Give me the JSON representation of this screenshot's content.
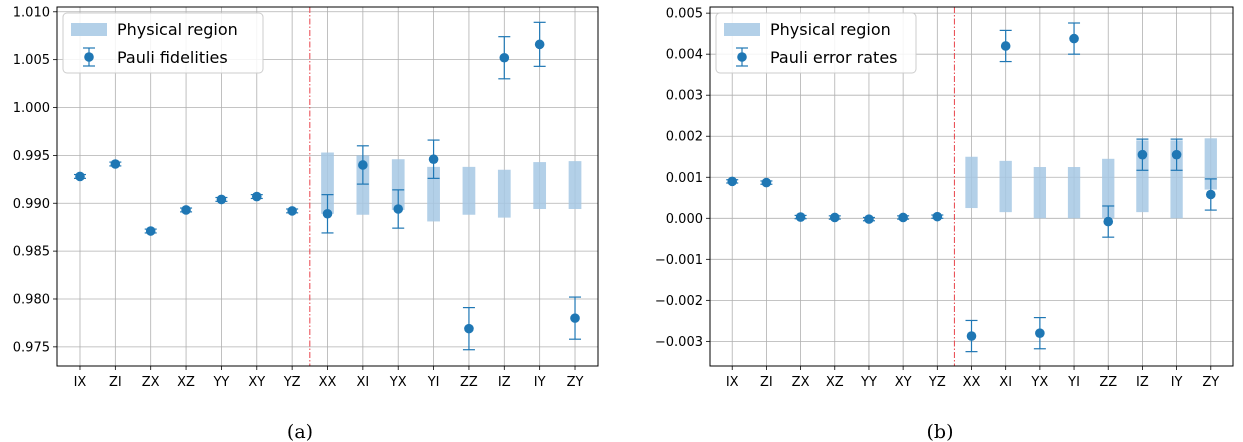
{
  "chart_data": [
    {
      "type": "scatter",
      "caption": "(a)",
      "categories": [
        "IX",
        "ZI",
        "ZX",
        "XZ",
        "YY",
        "XY",
        "YZ",
        "XX",
        "XI",
        "YX",
        "YI",
        "ZZ",
        "IZ",
        "IY",
        "ZY"
      ],
      "ylim": [
        0.973,
        1.0105
      ],
      "yticks": [
        "0.975",
        "0.980",
        "0.985",
        "0.990",
        "0.995",
        "1.000",
        "1.005",
        "1.010"
      ],
      "grid": true,
      "legend_position": "top-left",
      "divider_after": "YZ",
      "legend": {
        "physical_label": "Physical region",
        "points_label": "Pauli fidelities"
      },
      "colors": {
        "points": "#1f77b4",
        "region": "#a6c8e4",
        "divider": "#e8434a"
      },
      "series": [
        {
          "name": "Pauli fidelities",
          "values": [
            0.9928,
            0.9941,
            0.9871,
            0.9893,
            0.9904,
            0.9907,
            0.9892,
            0.9889,
            0.994,
            0.9894,
            0.9946,
            0.9769,
            1.0052,
            1.0066,
            0.978
          ],
          "errors": [
            0.0002,
            0.0002,
            0.0002,
            0.0002,
            0.0002,
            0.0002,
            0.0002,
            0.002,
            0.002,
            0.002,
            0.002,
            0.0022,
            0.0022,
            0.0023,
            0.0022
          ]
        }
      ],
      "physical_region": [
        null,
        null,
        null,
        null,
        null,
        null,
        null,
        [
          0.9889,
          0.9953
        ],
        [
          0.9888,
          0.995
        ],
        [
          0.9893,
          0.9946
        ],
        [
          0.9881,
          0.9938
        ],
        [
          0.9888,
          0.9938
        ],
        [
          0.9885,
          0.9935
        ],
        [
          0.9894,
          0.9943
        ],
        [
          0.9894,
          0.9944
        ]
      ]
    },
    {
      "type": "scatter",
      "caption": "(b)",
      "categories": [
        "IX",
        "ZI",
        "ZX",
        "XZ",
        "YY",
        "XY",
        "YZ",
        "XX",
        "XI",
        "YX",
        "YI",
        "ZZ",
        "IZ",
        "IY",
        "ZY"
      ],
      "ylim": [
        -0.0036,
        0.00515
      ],
      "yticks": [
        "−0.003",
        "−0.002",
        "−0.001",
        "0.000",
        "0.001",
        "0.002",
        "0.003",
        "0.004",
        "0.005"
      ],
      "grid": true,
      "legend_position": "top-left",
      "divider_after": "YZ",
      "legend": {
        "physical_label": "Physical region",
        "points_label": "Pauli error rates"
      },
      "colors": {
        "points": "#1f77b4",
        "region": "#a6c8e4",
        "divider": "#e8434a"
      },
      "series": [
        {
          "name": "Pauli error rates",
          "values": [
            0.0009,
            0.00087,
            3e-05,
            2e-05,
            -2e-05,
            2e-05,
            4e-05,
            -0.00287,
            0.0042,
            -0.0028,
            0.00438,
            -8e-05,
            0.00155,
            0.00155,
            0.00058
          ],
          "errors": [
            4e-05,
            4e-05,
            4e-05,
            4e-05,
            4e-05,
            4e-05,
            4e-05,
            0.00038,
            0.00038,
            0.00038,
            0.00038,
            0.00038,
            0.00038,
            0.00038,
            0.00038
          ]
        }
      ],
      "physical_region": [
        null,
        null,
        null,
        null,
        null,
        null,
        null,
        [
          0.00025,
          0.0015
        ],
        [
          0.00015,
          0.0014
        ],
        [
          0.0,
          0.00125
        ],
        [
          0.0,
          0.00125
        ],
        [
          0.0,
          0.00145
        ],
        [
          0.00015,
          0.0019
        ],
        [
          0.0,
          0.0019
        ],
        [
          0.0007,
          0.00195
        ]
      ]
    }
  ]
}
